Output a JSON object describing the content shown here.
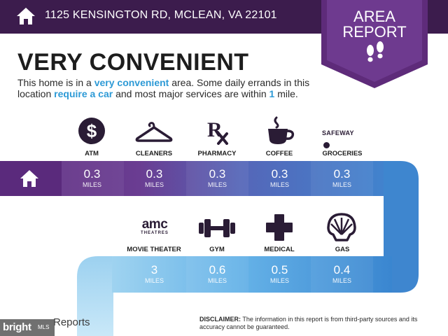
{
  "header": {
    "address": "1125 KENSINGTON RD, MCLEAN, VA 22101",
    "badge_line1": "AREA",
    "badge_line2": "REPORT"
  },
  "summary": {
    "heading": "VERY CONVENIENT",
    "desc_1": "This home is in a ",
    "desc_hl1": "very convenient",
    "desc_2": " area. Some daily errands in this location ",
    "desc_hl2": "require a car",
    "desc_3": " and most major services are within ",
    "desc_hl3": "1",
    "desc_4": " mile."
  },
  "services_row1": [
    {
      "label": "ATM",
      "value": "0.3",
      "unit": "MILES",
      "icon": "dollar-icon"
    },
    {
      "label": "CLEANERS",
      "value": "0.3",
      "unit": "MILES",
      "icon": "hanger-icon"
    },
    {
      "label": "PHARMACY",
      "value": "0.3",
      "unit": "MILES",
      "icon": "rx-icon"
    },
    {
      "label": "COFFEE",
      "value": "0.3",
      "unit": "MILES",
      "icon": "coffee-cup-icon"
    },
    {
      "label": "GROCERIES",
      "value": "0.3",
      "unit": "MILES",
      "icon": "safeway-logo",
      "logo_text": "SAFEWAY"
    }
  ],
  "services_row2": [
    {
      "label": "MOVIE THEATER",
      "value": "3",
      "unit": "MILES",
      "icon": "amc-logo",
      "logo_text": "amc",
      "logo_sub": "THEATRES"
    },
    {
      "label": "GYM",
      "value": "0.6",
      "unit": "MILES",
      "icon": "dumbbell-icon"
    },
    {
      "label": "MEDICAL",
      "value": "0.5",
      "unit": "MILES",
      "icon": "medical-cross-icon"
    },
    {
      "label": "GAS",
      "value": "0.4",
      "unit": "MILES",
      "icon": "shell-icon"
    }
  ],
  "footer": {
    "brand": "bright",
    "brand_small": "MLS",
    "reports": "Reports",
    "disclaimer_label": "DISCLAIMER:",
    "disclaimer_text": " The information in this report is from third-party sources and its accuracy cannot be guaranteed."
  },
  "colors": {
    "header_bg": "#3c1c4d",
    "badge_bg": "#5e2b7a",
    "accent_text": "#2d9ad6",
    "path_purple": "#6a3a8e",
    "path_blue": "#3f8dd4"
  }
}
